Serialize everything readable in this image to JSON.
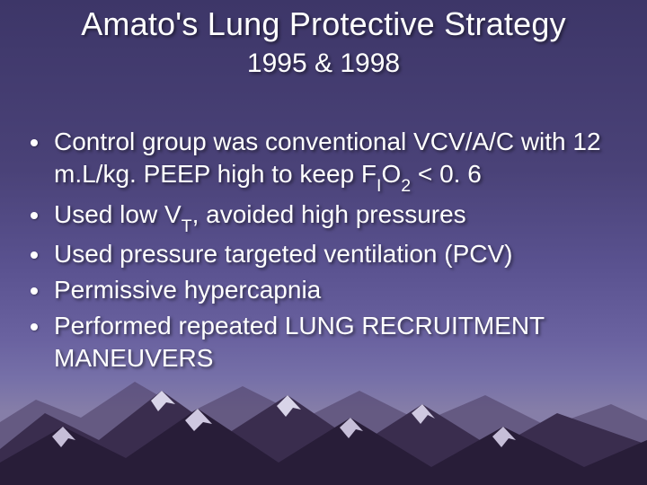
{
  "slide": {
    "title": "Amato's Lung Protective Strategy",
    "subtitle": "1995 & 1998",
    "bullets": [
      {
        "html": "Control group was conventional VCV/A/C with 12 m.L/kg. PEEP high to keep F<span class=\"sub\">I</span>O<span class=\"sub\">2</span> < 0. 6"
      },
      {
        "html": "Used low V<span class=\"sub\">T</span>, avoided high pressures"
      },
      {
        "html": "Used pressure targeted ventilation (PCV)"
      },
      {
        "html": "Permissive hypercapnia"
      },
      {
        "html": "Performed repeated LUNG RECRUITMENT MANEUVERS"
      }
    ]
  },
  "style": {
    "background_gradient_top": "#3d3668",
    "background_gradient_bottom": "#867ea8",
    "text_color": "#ffffff",
    "title_fontsize": 36,
    "subtitle_fontsize": 30,
    "body_fontsize": 28,
    "mountain_base": "#2a1f3a",
    "mountain_mid": "#3e3050",
    "mountain_snow": "#d8d4e8",
    "mountain_snow_shadow": "#a89cc0"
  }
}
